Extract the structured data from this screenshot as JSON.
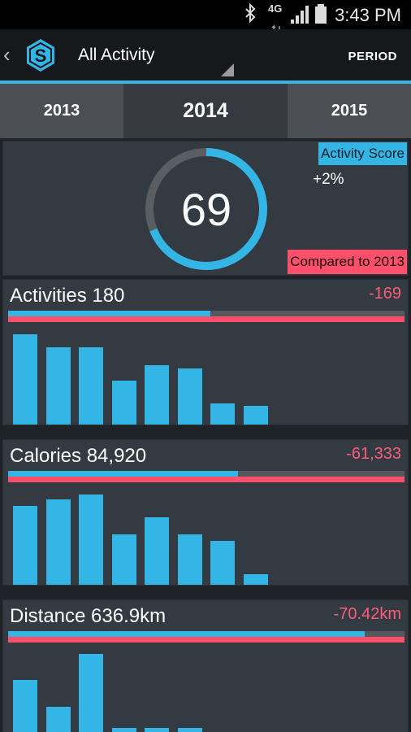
{
  "status_bar": {
    "time": "3:43 PM",
    "network": "4G"
  },
  "action_bar": {
    "back_glyph": "‹",
    "logo_letter": "S",
    "title": "All Activity",
    "period_label": "PERIOD"
  },
  "year_tabs": [
    {
      "label": "2013"
    },
    {
      "label": "2014"
    },
    {
      "label": "2015"
    }
  ],
  "score": {
    "value": "69",
    "label": "Activity Score",
    "delta": "+2%",
    "compare_label": "Compared to 2013",
    "ring_fraction": 0.69
  },
  "metrics": [
    {
      "title": "Activities 180",
      "delta": "-169",
      "progress_fraction": 0.51,
      "bars": [
        113,
        97,
        97,
        56,
        75,
        71,
        28,
        25
      ]
    },
    {
      "title": "Calories 84,920",
      "delta": "-61,333",
      "progress_fraction": 0.58,
      "bars": [
        99,
        107,
        113,
        64,
        85,
        64,
        56,
        15
      ]
    },
    {
      "title": "Distance 636.9km",
      "delta": "-70.42km",
      "progress_fraction": 0.9,
      "bars": [
        65,
        32,
        97,
        6,
        6,
        6,
        0,
        0
      ]
    }
  ],
  "colors": {
    "accent": "#33b5e5",
    "negative": "#ff4f6b",
    "card": "#333a42",
    "ring_track": "#5a5d61"
  }
}
